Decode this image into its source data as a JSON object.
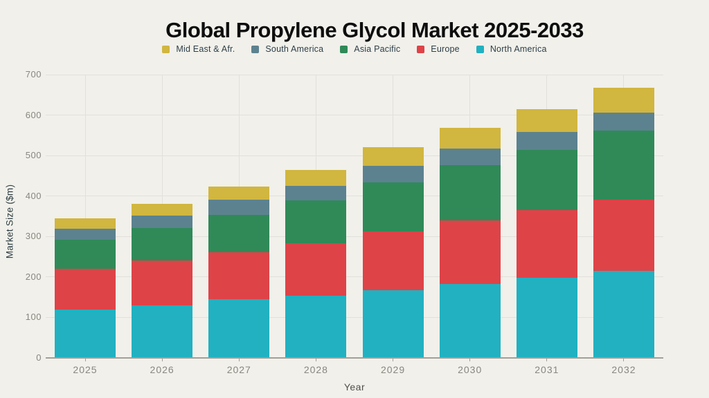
{
  "chart_data": {
    "type": "bar",
    "stacked": true,
    "title": "Global Propylene Glycol Market 2025-2033",
    "xlabel": "Year",
    "ylabel": "Market Size ($m)",
    "ylim": [
      0,
      700
    ],
    "ytick_step": 100,
    "grid": true,
    "legend_position": "top",
    "legend_order_note": "legend displays series in reverse stacking order (top segment first)",
    "categories": [
      "2025",
      "2026",
      "2027",
      "2028",
      "2029",
      "2030",
      "2031",
      "2032"
    ],
    "series": [
      {
        "name": "North America",
        "color": "#21b1c1",
        "values": [
          120,
          129,
          145,
          154,
          168,
          183,
          198,
          215
        ]
      },
      {
        "name": "Europe",
        "color": "#de4348",
        "values": [
          100,
          112,
          116,
          130,
          145,
          156,
          167,
          176
        ]
      },
      {
        "name": "Asia Pacific",
        "color": "#2f8a58",
        "values": [
          72,
          80,
          93,
          106,
          121,
          137,
          149,
          170
        ]
      },
      {
        "name": "South America",
        "color": "#5c828f",
        "values": [
          28,
          31,
          37,
          35,
          41,
          42,
          45,
          45
        ]
      },
      {
        "name": "Mid East & Afr.",
        "color": "#d1b63f",
        "values": [
          25,
          28,
          33,
          40,
          45,
          50,
          55,
          62
        ]
      }
    ],
    "totals": [
      345,
      380,
      424,
      465,
      520,
      568,
      614,
      668
    ]
  },
  "colors": {
    "background": "#f1f0ea",
    "grid": "#e1e0da",
    "axis": "#a09f98",
    "tick_label": "#87867f",
    "title": "#0e0e0e",
    "legend_text": "#2d3e48"
  }
}
